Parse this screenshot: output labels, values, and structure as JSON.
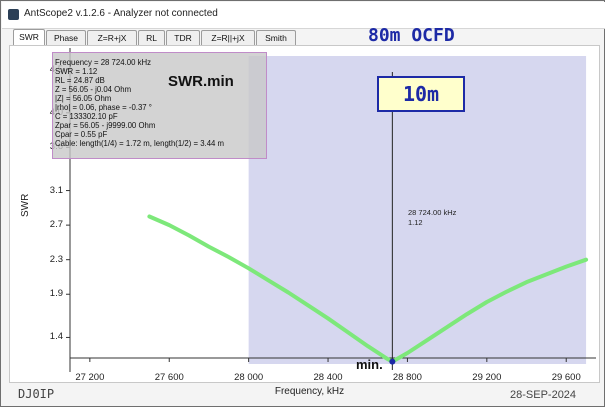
{
  "window": {
    "title": "AntScope2 v.1.2.6 - Analyzer not connected"
  },
  "tabs": [
    {
      "label": "SWR",
      "active": true
    },
    {
      "label": "Phase"
    },
    {
      "label": "Z=R+jX"
    },
    {
      "label": "RL"
    },
    {
      "label": "TDR"
    },
    {
      "label": "Z=R||+jX"
    },
    {
      "label": "Smith"
    }
  ],
  "annotations": {
    "antenna_title": "80m OCFD",
    "band_label": "10m",
    "swr_min_label": "SWR.min",
    "min_label": "min.",
    "callsign": "DJ0IP",
    "date": "28-SEP-2024"
  },
  "info_box": [
    "Frequency = 28 724.00 kHz",
    "SWR = 1.12",
    "RL = 24.87 dB",
    "Z = 56.05 - j0.04 Ohm",
    "|Z| = 56.05 Ohm",
    "|rho| = 0.06, phase = -0.37 °",
    "C = 133302.10 pF",
    "Zpar = 56.05 - j9999.00 Ohm",
    "Cpar = 0.55 pF",
    "Cable: length(1/4) = 1.72 m, length(1/2) = 3.44 m"
  ],
  "marker": {
    "freq_text": "28 724.00 kHz",
    "swr_text": "1.12"
  },
  "colors": {
    "band_shade": "#cfd0ec",
    "curve": "#7de87a",
    "marker_line": "#222222",
    "title_blue": "#1d2aa6"
  },
  "chart_data": {
    "type": "line",
    "xlabel": "Frequency, kHz",
    "ylabel": "SWR",
    "xlim": [
      27100,
      29750
    ],
    "ylim": [
      1.0,
      4.75
    ],
    "xticks": [
      "27 200",
      "27 600",
      "28 000",
      "28 400",
      "28 800",
      "29 200",
      "29 600"
    ],
    "xtick_values": [
      27200,
      27600,
      28000,
      28400,
      28800,
      29200,
      29600
    ],
    "yticks": [
      "1.4",
      "1.9",
      "2.3",
      "2.7",
      "3.1",
      "3.6",
      "4.0",
      "4.5"
    ],
    "ytick_values": [
      1.4,
      1.9,
      2.3,
      2.7,
      3.1,
      3.6,
      4.0,
      4.5
    ],
    "band_range": [
      28000,
      29700
    ],
    "marker_x": 28724,
    "marker_y": 1.12,
    "grid": false,
    "series": [
      {
        "x": [
          27500,
          27600,
          27700,
          27800,
          27900,
          28000,
          28100,
          28200,
          28300,
          28400,
          28500,
          28600,
          28700,
          28724,
          28800,
          28900,
          29000,
          29100,
          29200,
          29300,
          29400,
          29500,
          29600,
          29700
        ],
        "y": [
          2.8,
          2.7,
          2.58,
          2.45,
          2.33,
          2.2,
          2.06,
          1.92,
          1.77,
          1.62,
          1.46,
          1.3,
          1.15,
          1.12,
          1.22,
          1.37,
          1.52,
          1.67,
          1.81,
          1.93,
          2.04,
          2.13,
          2.22,
          2.3
        ]
      }
    ]
  }
}
